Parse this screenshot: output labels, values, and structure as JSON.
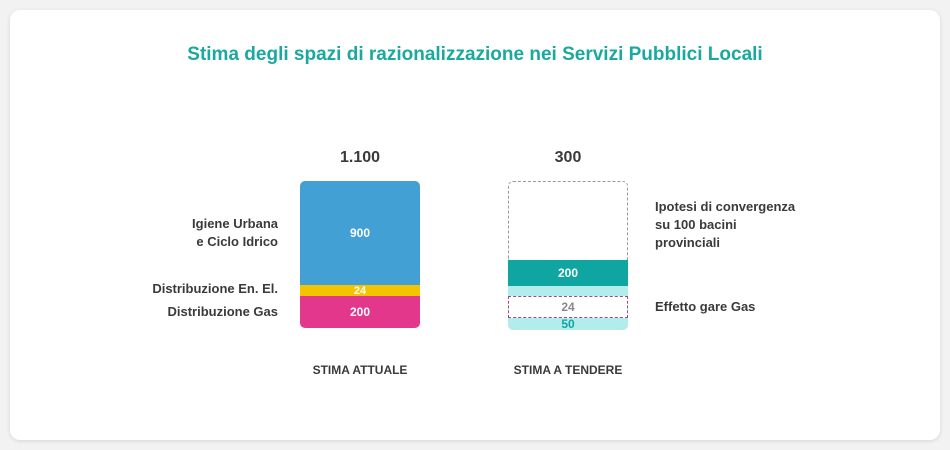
{
  "chart_data": {
    "type": "bar",
    "stacked": true,
    "title": "Stima degli spazi di razionalizzazione nei Servizi Pubblici Locali",
    "categories": [
      "STIMA ATTUALE",
      "STIMA A TENDERE"
    ],
    "totals": [
      "1.100",
      "300"
    ],
    "bars": [
      {
        "category": "STIMA ATTUALE",
        "segments": [
          {
            "label": "Distribuzione Gas",
            "value": 200,
            "text": "200",
            "color": "#e2378a"
          },
          {
            "label": "Distribuzione En. El.",
            "value": 24,
            "text": "24",
            "color": "#f5c400"
          },
          {
            "label": "Igiene Urbana e Ciclo Idrico",
            "value": 900,
            "text": "900",
            "color": "#42a0d4"
          }
        ]
      },
      {
        "category": "STIMA A TENDERE",
        "segments": [
          {
            "value": 50,
            "text": "50",
            "color": "#b3ecec"
          },
          {
            "value": 24,
            "text": "24",
            "style": "dashed",
            "border_color": "#9b4d82"
          },
          {
            "value": 24,
            "text": "",
            "color": "#b3ecec"
          },
          {
            "value": 200,
            "text": "200",
            "color": "#0fa5a0"
          },
          {
            "value": 676,
            "text": "",
            "style": "dashed",
            "border_color": "#999999"
          }
        ]
      }
    ],
    "left_labels": {
      "igiene": [
        "Igiene Urbana",
        "e Ciclo Idrico"
      ],
      "elettrica": "Distribuzione En. El.",
      "gas": "Distribuzione Gas"
    },
    "right_labels": {
      "ipotesi": [
        "Ipotesi di convergenza",
        "su 100 bacini",
        "provinciali"
      ],
      "gare": "Effetto gare Gas"
    }
  }
}
